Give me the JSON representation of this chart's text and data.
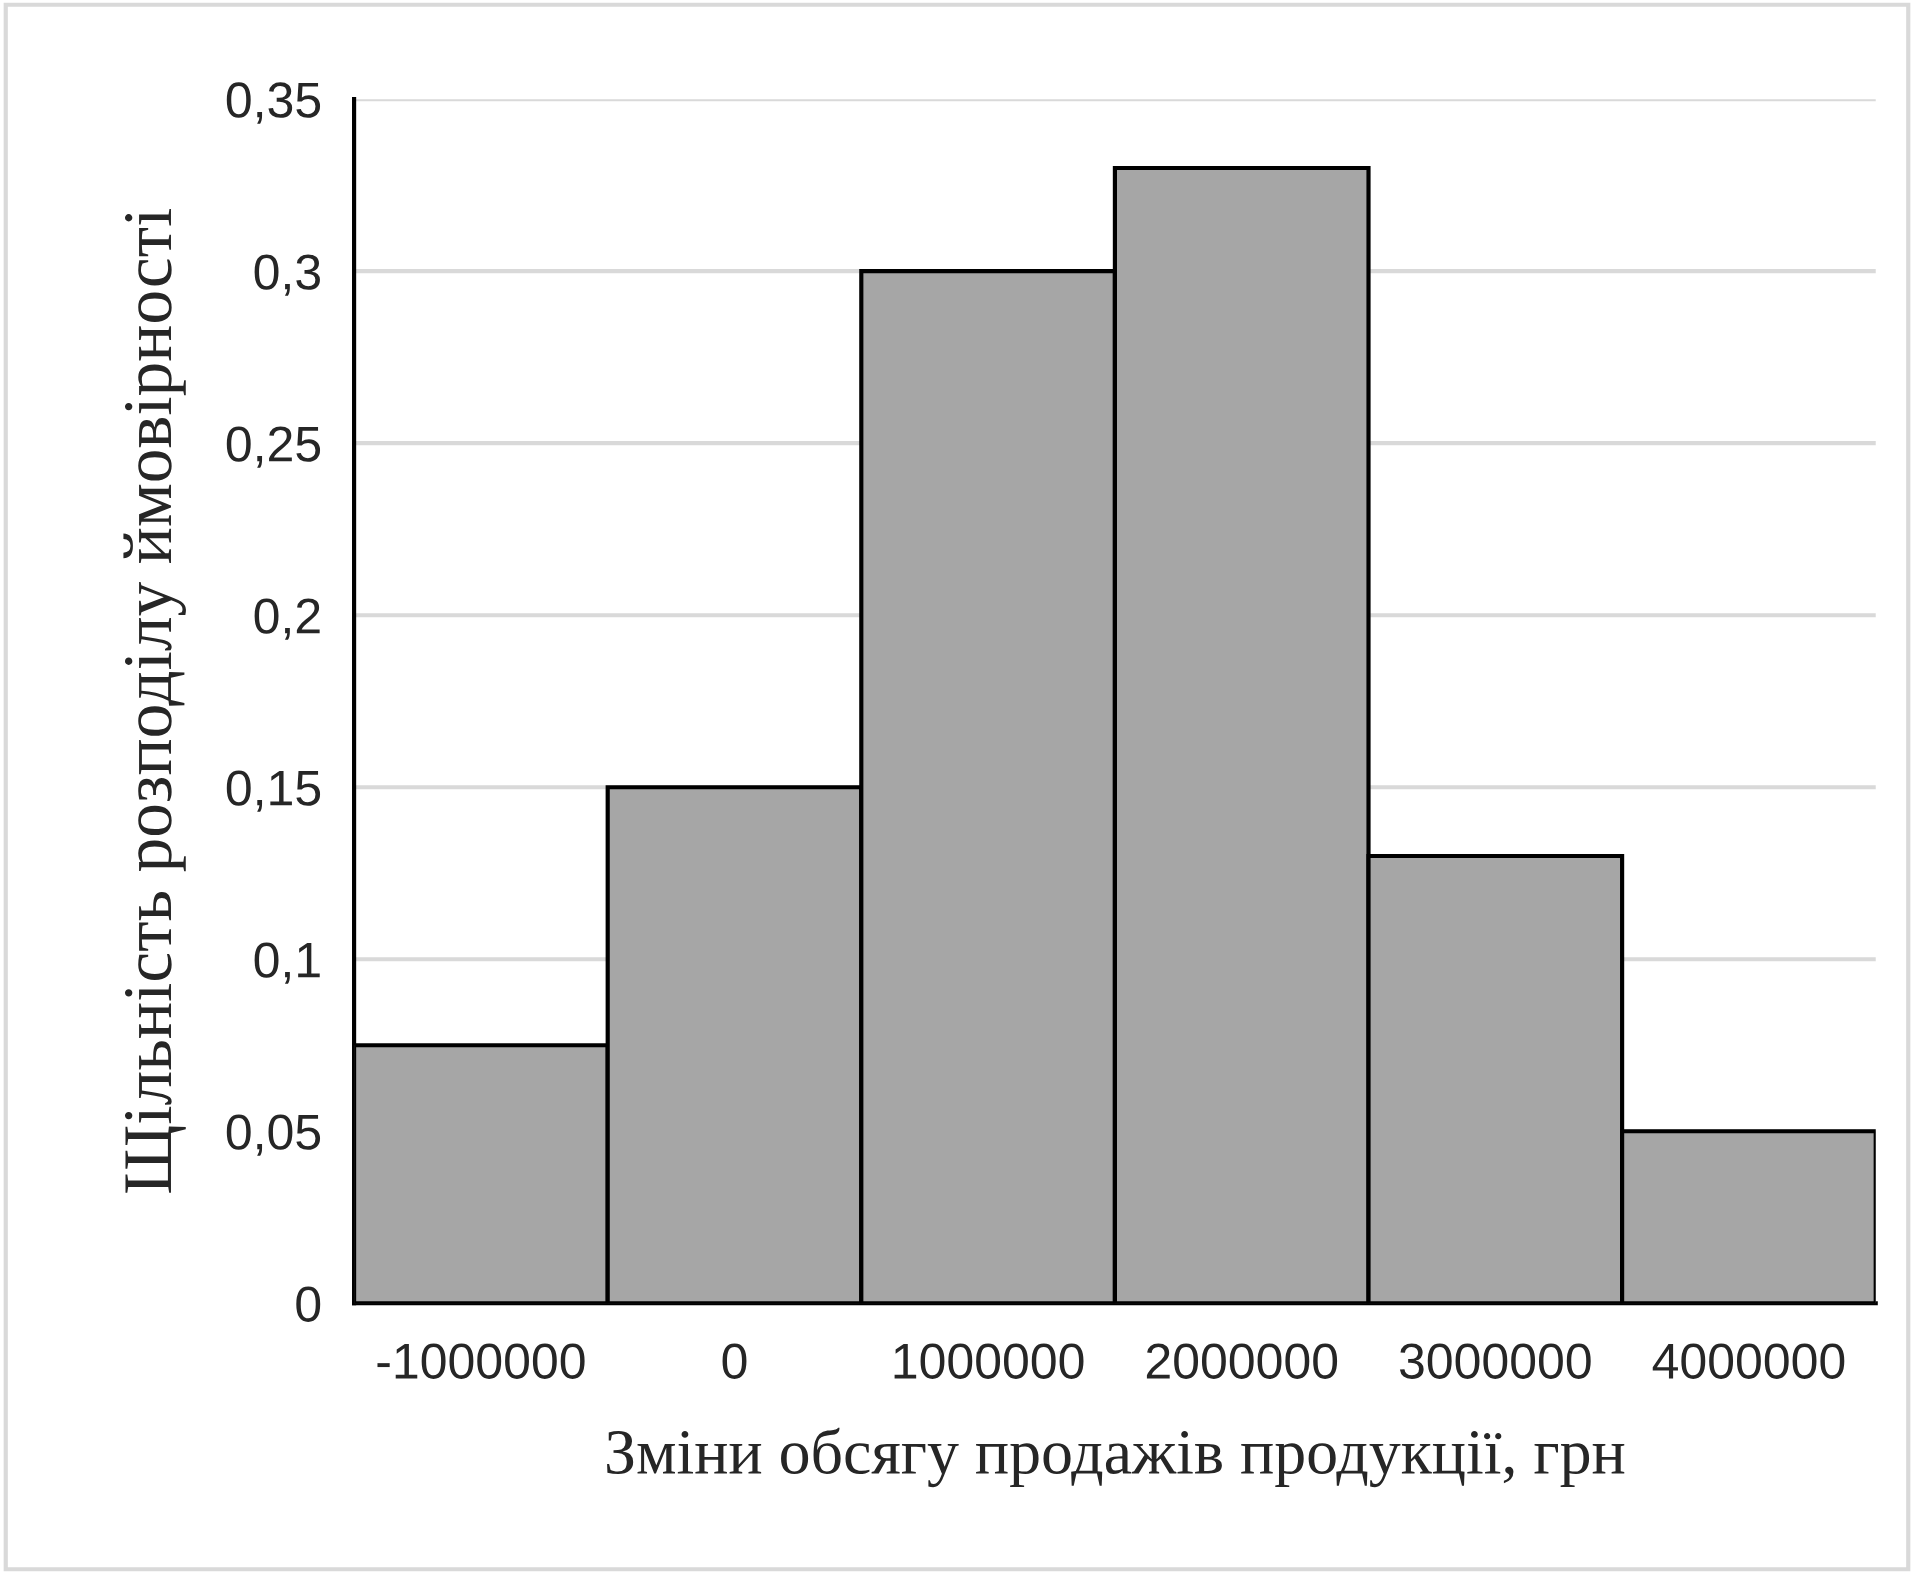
{
  "chart_data": {
    "type": "bar",
    "xlabel": "Зміни обсягу продажів продукції, грн",
    "ylabel": "Щільність розподілу ймовірності",
    "categories": [
      "-1000000",
      "0",
      "1000000",
      "2000000",
      "3000000",
      "4000000"
    ],
    "values": [
      0.075,
      0.15,
      0.3,
      0.33,
      0.13,
      0.05
    ],
    "color": "#a6a6a6",
    "ylim": [
      0,
      0.35
    ],
    "yticks": [
      0,
      {
        "value": 0.05,
        "label": "0,05"
      },
      {
        "value": 0.1,
        "label": "0,1"
      },
      {
        "value": 0.15,
        "label": "0,15"
      },
      {
        "value": 0.2,
        "label": "0,2"
      },
      {
        "value": 0.25,
        "label": "0,25"
      },
      {
        "value": 0.3,
        "label": "0,3"
      },
      {
        "value": 0.35,
        "label": "0,35"
      }
    ],
    "grid": "y",
    "legend": false
  }
}
